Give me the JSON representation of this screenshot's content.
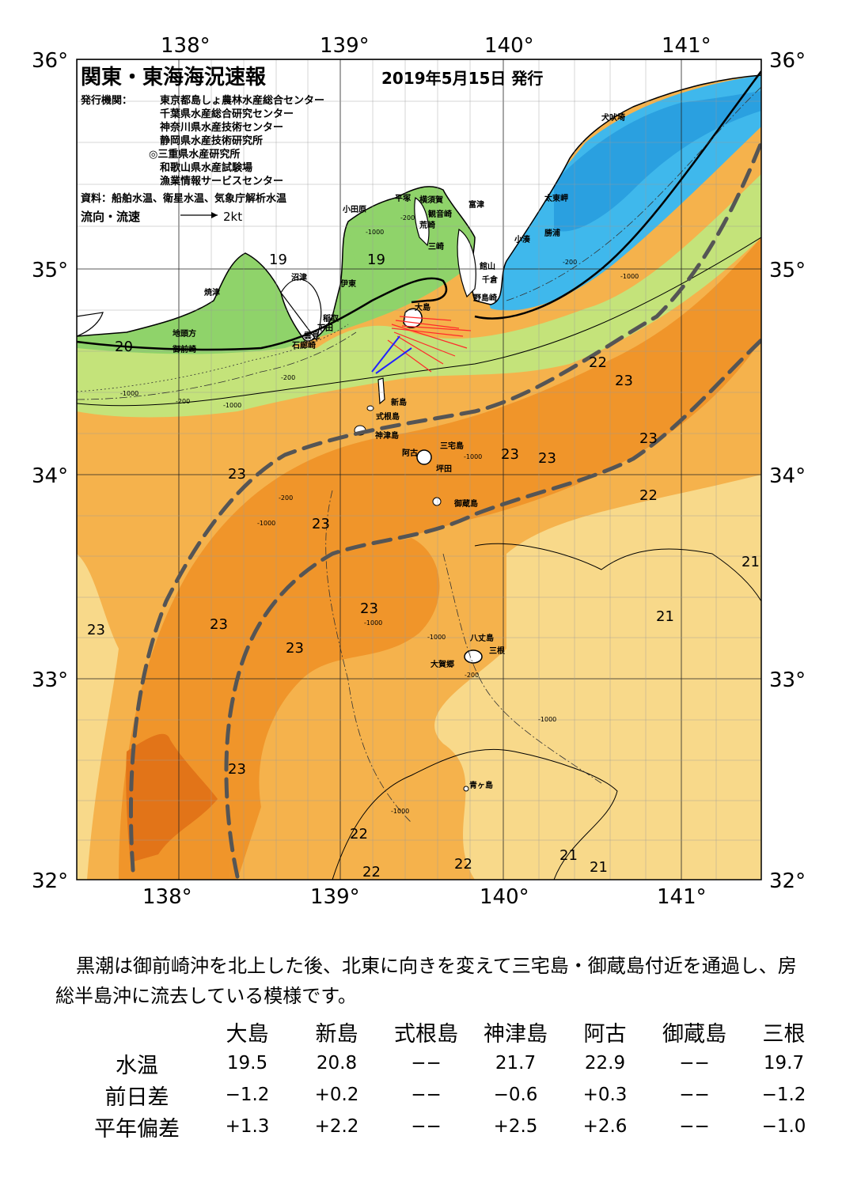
{
  "map": {
    "title": "関東・東海海況速報",
    "issue_date": "2019年5月15日 発行",
    "issuer_label": "発行機関：",
    "issuers": [
      "東京都島しょ農林水産総合センター",
      "千葉県水産総合研究センター",
      "神奈川県水産技術センター",
      "静岡県水産技術研究所",
      "◎三重県水産研究所",
      "和歌山県水産試験場",
      "漁業情報サービスセンター"
    ],
    "source": "資料：船舶水温、衛星水温、気象庁解析水温",
    "current_legend": "流向・流速",
    "current_scale": "2kt",
    "lon_labels": [
      "138°",
      "139°",
      "140°",
      "141°"
    ],
    "lat_labels": [
      "36°",
      "35°",
      "34°",
      "33°",
      "32°"
    ],
    "place_labels": {
      "inubosaki": "犬吠埼",
      "taitozaki": "太東岬",
      "katsuura": "勝浦",
      "kominato": "小湊",
      "tateyama": "館山",
      "chikura": "千倉",
      "nojimazaki": "野島崎",
      "futtsu": "富津",
      "yokosuka": "横須賀",
      "kannonzaki": "観音崎",
      "arasaki": "荒崎",
      "misaki": "三崎",
      "hiratsuka": "平塚",
      "odawara": "小田原",
      "ito": "伊東",
      "inatori": "稲取",
      "shimoda": "下田",
      "mikomoto": "石廊崎",
      "kumomi": "雲見",
      "numazu": "沼津",
      "yaizu": "焼津",
      "jitogata": "地頭方",
      "omaezaki": "御前崎",
      "oshima": "大島",
      "niijima": "新島",
      "shikinejima": "式根島",
      "kozushima": "神津島",
      "miyakejima": "三宅島",
      "ako": "阿古",
      "tsubota": "坪田",
      "mikurajima": "御蔵島",
      "hachijojima": "八丈島",
      "mitsune": "三根",
      "okago": "大賀郷",
      "aogashima": "青ヶ島"
    },
    "isotherm_labels": [
      "19",
      "19",
      "20",
      "22",
      "23",
      "23",
      "23",
      "23",
      "23",
      "23",
      "23",
      "23",
      "22",
      "23",
      "21",
      "23",
      "21",
      "21",
      "22",
      "22",
      "22",
      "21",
      "21",
      "23"
    ],
    "depth_labels": [
      "-200",
      "-1000",
      "-200",
      "-1000",
      "-200",
      "-1000",
      "-200",
      "-1000",
      "-1000",
      "-1000",
      "-1000",
      "-200",
      "-1000",
      "-1000",
      "-200",
      "-1000"
    ]
  },
  "summary": "黒潮は御前崎沖を北上した後、北東に向きを変えて三宅島・御蔵島付近を通過し、房総半島沖に流去している模様です。",
  "readings": {
    "stations": [
      "大島",
      "新島",
      "式根島",
      "神津島",
      "阿古",
      "御蔵島",
      "三根"
    ],
    "rows": [
      {
        "label": "水温",
        "values": [
          "19.5",
          "20.8",
          "−−",
          "21.7",
          "22.9",
          "−−",
          "19.7"
        ]
      },
      {
        "label": "前日差",
        "values": [
          "−1.2",
          "+0.2",
          "−−",
          "−0.6",
          "+0.3",
          "−−",
          "−1.2"
        ]
      },
      {
        "label": "平年偏差",
        "values": [
          "+1.3",
          "+2.2",
          "−−",
          "+2.5",
          "+2.6",
          "−−",
          "−1.0"
        ]
      }
    ]
  },
  "colors": {
    "water_19": "#8fd36a",
    "water_20": "#c4e37a",
    "water_21": "#f8d98a",
    "water_22": "#f5b24c",
    "water_23": "#f0952a",
    "water_24": "#e27418",
    "cold_water": "#3fb8ec",
    "land": "#ffffff",
    "kuroshio_axis": "#555555",
    "current_vectors": "#ff2a2a"
  }
}
